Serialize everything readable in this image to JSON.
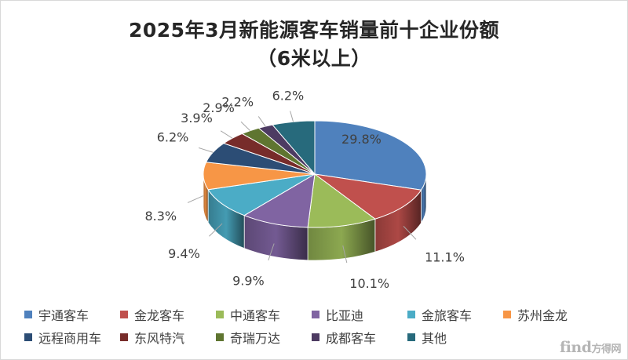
{
  "chart_data": {
    "type": "pie",
    "title_line1": "2025年3月新能源客车销量前十企业份额",
    "title_line2": "（6米以上）",
    "categories": [
      "宇通客车",
      "金龙客车",
      "中通客车",
      "比亚迪",
      "金旅客车",
      "苏州金龙",
      "远程商用车",
      "东风特汽",
      "奇瑞万达",
      "成都客车",
      "其他"
    ],
    "values": [
      29.8,
      11.1,
      10.1,
      9.9,
      9.4,
      8.3,
      6.2,
      3.9,
      2.9,
      2.2,
      6.2
    ],
    "data_labels": [
      "29.8%",
      "11.1%",
      "10.1%",
      "9.9%",
      "9.4%",
      "8.3%",
      "6.2%",
      "3.9%",
      "2.9%",
      "2.2%",
      "6.2%"
    ],
    "colors": [
      "#4f81bd",
      "#c0504d",
      "#9bbb59",
      "#8064a2",
      "#4bacc6",
      "#f79646",
      "#2c4d75",
      "#772c2a",
      "#5f7530",
      "#4d3b62",
      "#276a7c"
    ],
    "legend_position": "bottom",
    "style": "3d-pie"
  },
  "watermark": {
    "brand": "find",
    "site": "方得网"
  }
}
